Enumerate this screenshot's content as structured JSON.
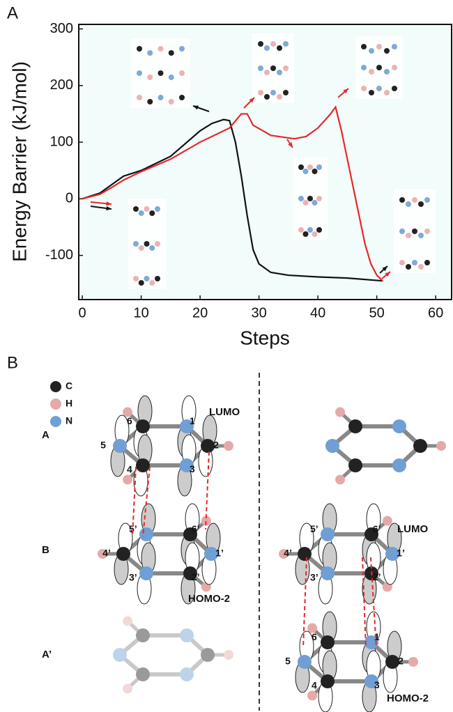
{
  "chart_data": {
    "type": "line",
    "panel_label": "A",
    "x_label": "Steps",
    "y_label": "Energy Barrier (kJ/mol)",
    "xlim": [
      -0.6,
      62.7
    ],
    "ylim": [
      -178,
      308
    ],
    "xticks": [
      0,
      10,
      20,
      30,
      40,
      50,
      60
    ],
    "yticks": [
      -100,
      0,
      100,
      200,
      300
    ],
    "series": [
      {
        "color": "#111111",
        "x": [
          0,
          3,
          5,
          7,
          10,
          15,
          20,
          22,
          24,
          25,
          26,
          27,
          28,
          29,
          30,
          32,
          35,
          40,
          45,
          51
        ],
        "values": [
          0,
          10,
          25,
          40,
          50,
          75,
          120,
          133,
          140,
          138,
          100,
          40,
          -30,
          -90,
          -115,
          -130,
          -135,
          -138,
          -140,
          -145
        ]
      },
      {
        "color": "#e8262a",
        "x": [
          0,
          3,
          5,
          7,
          10,
          15,
          20,
          25,
          27,
          28,
          29,
          32,
          36,
          38,
          40,
          42,
          43,
          44,
          46,
          48,
          49,
          50,
          51
        ],
        "values": [
          0,
          8,
          20,
          33,
          48,
          70,
          100,
          125,
          150,
          150,
          130,
          112,
          106,
          110,
          125,
          148,
          162,
          120,
          20,
          -80,
          -115,
          -135,
          -145
        ]
      }
    ]
  },
  "panel_b": {
    "label": "B",
    "legend": [
      "C",
      "H",
      "N"
    ],
    "rows": [
      "A",
      "B",
      "A’"
    ],
    "left": {
      "top_orbital": "LUMO",
      "bottom_orbital": "HOMO-2",
      "ring_A": [
        "6",
        "1",
        "2",
        "3",
        "4",
        "5"
      ],
      "ring_B": [
        "5’",
        "6’",
        "1’",
        "2’",
        "3’",
        "4’"
      ]
    },
    "right": {
      "top_orbital": "LUMO",
      "bottom_orbital": "HOMO-2",
      "ring_B": [
        "5’",
        "6’",
        "1’",
        "2’",
        "3’",
        "4’"
      ],
      "ring_A2": [
        "6",
        "1",
        "2",
        "3",
        "4",
        "5"
      ]
    }
  }
}
